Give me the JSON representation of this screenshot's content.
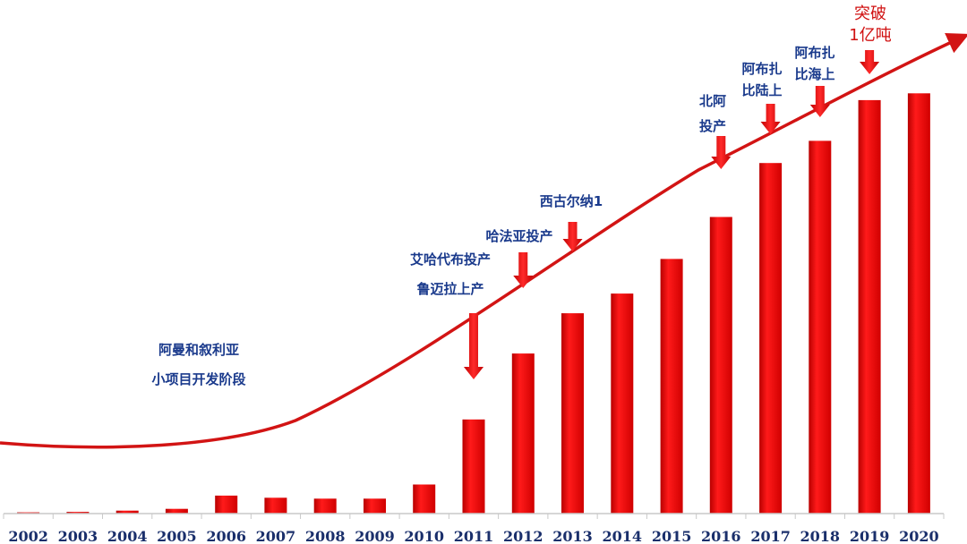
{
  "chart_data": {
    "type": "bar",
    "title": "",
    "xlabel": "",
    "ylabel": "",
    "categories": [
      "2002",
      "2003",
      "2004",
      "2005",
      "2006",
      "2007",
      "2008",
      "2009",
      "2010",
      "2011",
      "2012",
      "2013",
      "2014",
      "2015",
      "2016",
      "2017",
      "2018",
      "2019",
      "2020"
    ],
    "values": [
      0.3,
      0.4,
      0.7,
      1.1,
      4.2,
      3.7,
      3.5,
      3.5,
      6.8,
      22.0,
      37.4,
      46.8,
      51.4,
      59.5,
      69.3,
      81.9,
      87.1,
      96.6,
      98.2
    ],
    "ylim": [
      0,
      120
    ],
    "grid": false,
    "legend": "none",
    "bar_color": "#e30a0a",
    "trend_color": "#d21414",
    "annotations": [
      {
        "year": "2008",
        "lines": [
          "阿曼和叙利亚",
          "小项目开发阶段"
        ],
        "color": "#1a3a8c"
      },
      {
        "year": "2011",
        "lines": [
          "艾哈代布投产",
          "鲁迈拉上产"
        ],
        "color": "#1a3a8c"
      },
      {
        "year": "2012",
        "lines": [
          "哈法亚投产"
        ],
        "color": "#1a3a8c"
      },
      {
        "year": "2013",
        "lines": [
          "西古尔纳1"
        ],
        "color": "#1a3a8c"
      },
      {
        "year": "2016",
        "lines": [
          "北阿",
          "投产"
        ],
        "color": "#1a3a8c"
      },
      {
        "year": "2017",
        "lines": [
          "阿布扎",
          "比陆上"
        ],
        "color": "#1a3a8c"
      },
      {
        "year": "2018",
        "lines": [
          "阿布扎",
          "比海上"
        ],
        "color": "#1a3a8c"
      },
      {
        "year": "2019",
        "lines": [
          "突破",
          "1亿吨"
        ],
        "color": "#d01010"
      }
    ]
  }
}
